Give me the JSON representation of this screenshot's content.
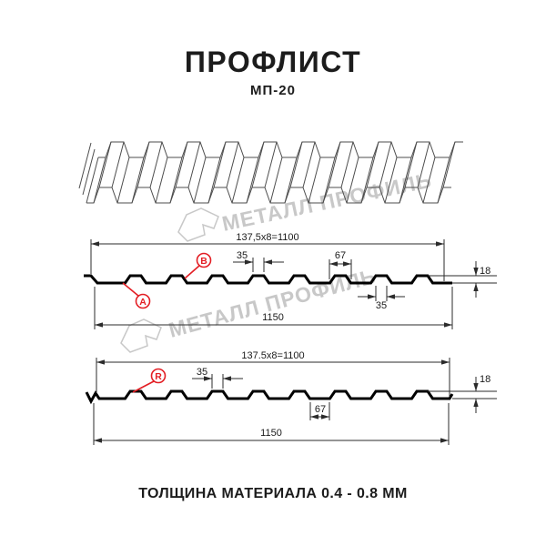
{
  "header": {
    "title": "ПРОФЛИСТ",
    "subtitle": "МП-20"
  },
  "footer": {
    "text": "ТОЛЩИНА МАТЕРИАЛА 0.4 - 0.8 ММ"
  },
  "watermark": {
    "text": "МЕТАЛЛ ПРОФИЛЬ"
  },
  "colors": {
    "accent_red": "#e31e24",
    "line_black": "#000000",
    "watermark_gray": "#c8c8c8"
  },
  "diagram_front": {
    "module_width": "137,5x8=1100",
    "rib_top_width": "35",
    "rib_base_width": "67",
    "profile_height": "18",
    "rib_underside_width": "35",
    "overall_width": "1150",
    "point_label_a": "A",
    "point_label_b": "B"
  },
  "diagram_reverse": {
    "module_width": "137.5x8=1100",
    "rib_top_width": "35",
    "valley_width": "67",
    "profile_height": "18",
    "overall_width": "1150",
    "point_label_r": "R"
  }
}
